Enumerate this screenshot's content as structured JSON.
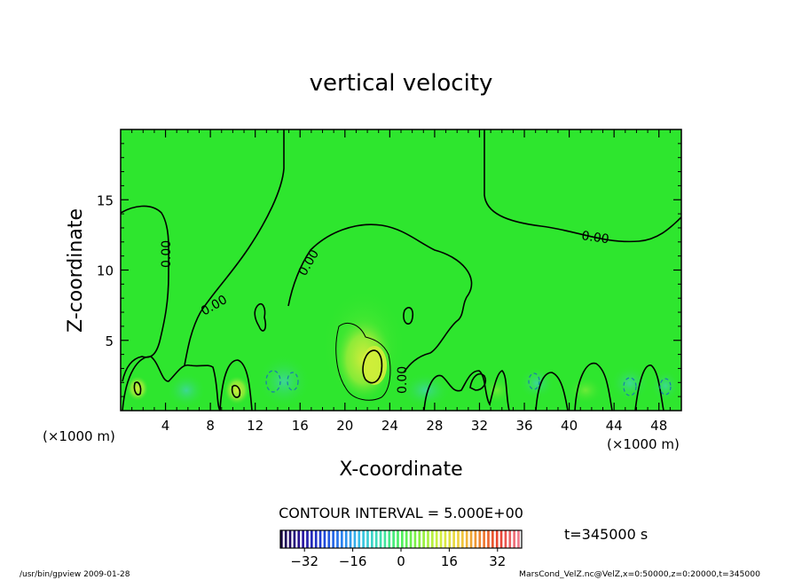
{
  "chart_data": {
    "type": "contour",
    "title": "vertical velocity",
    "xlabel": "X-coordinate",
    "ylabel": "Z-coordinate",
    "x_unit_left": "(×1000 m)",
    "x_unit_right": "(×1000 m)",
    "xlim": [
      0,
      50
    ],
    "ylim": [
      0,
      20
    ],
    "xticks": [
      4,
      8,
      12,
      16,
      20,
      24,
      28,
      32,
      36,
      40,
      44,
      48
    ],
    "yticks": [
      5,
      10,
      15
    ],
    "contour_label": "0.00",
    "contour_interval_text": "CONTOUR INTERVAL = 5.000E+00",
    "time_text": "t=345000 s",
    "colorbar": {
      "min": -40,
      "max": 40,
      "ticks": [
        -32,
        -16,
        0,
        16,
        32
      ],
      "colors": [
        "#1a0044",
        "#2a1399",
        "#1e3ed6",
        "#2a7ef0",
        "#38c2e8",
        "#3ee0b0",
        "#4af060",
        "#8af040",
        "#d2f040",
        "#f0d040",
        "#f08a30",
        "#e84030",
        "#f07a8a"
      ]
    },
    "field_color": "#2ee62e"
  },
  "footer": {
    "left": "/usr/bin/gpview   2009-01-28",
    "right": "MarsCond_VelZ.nc@VelZ,x=0:50000,z=0:20000,t=345000"
  }
}
